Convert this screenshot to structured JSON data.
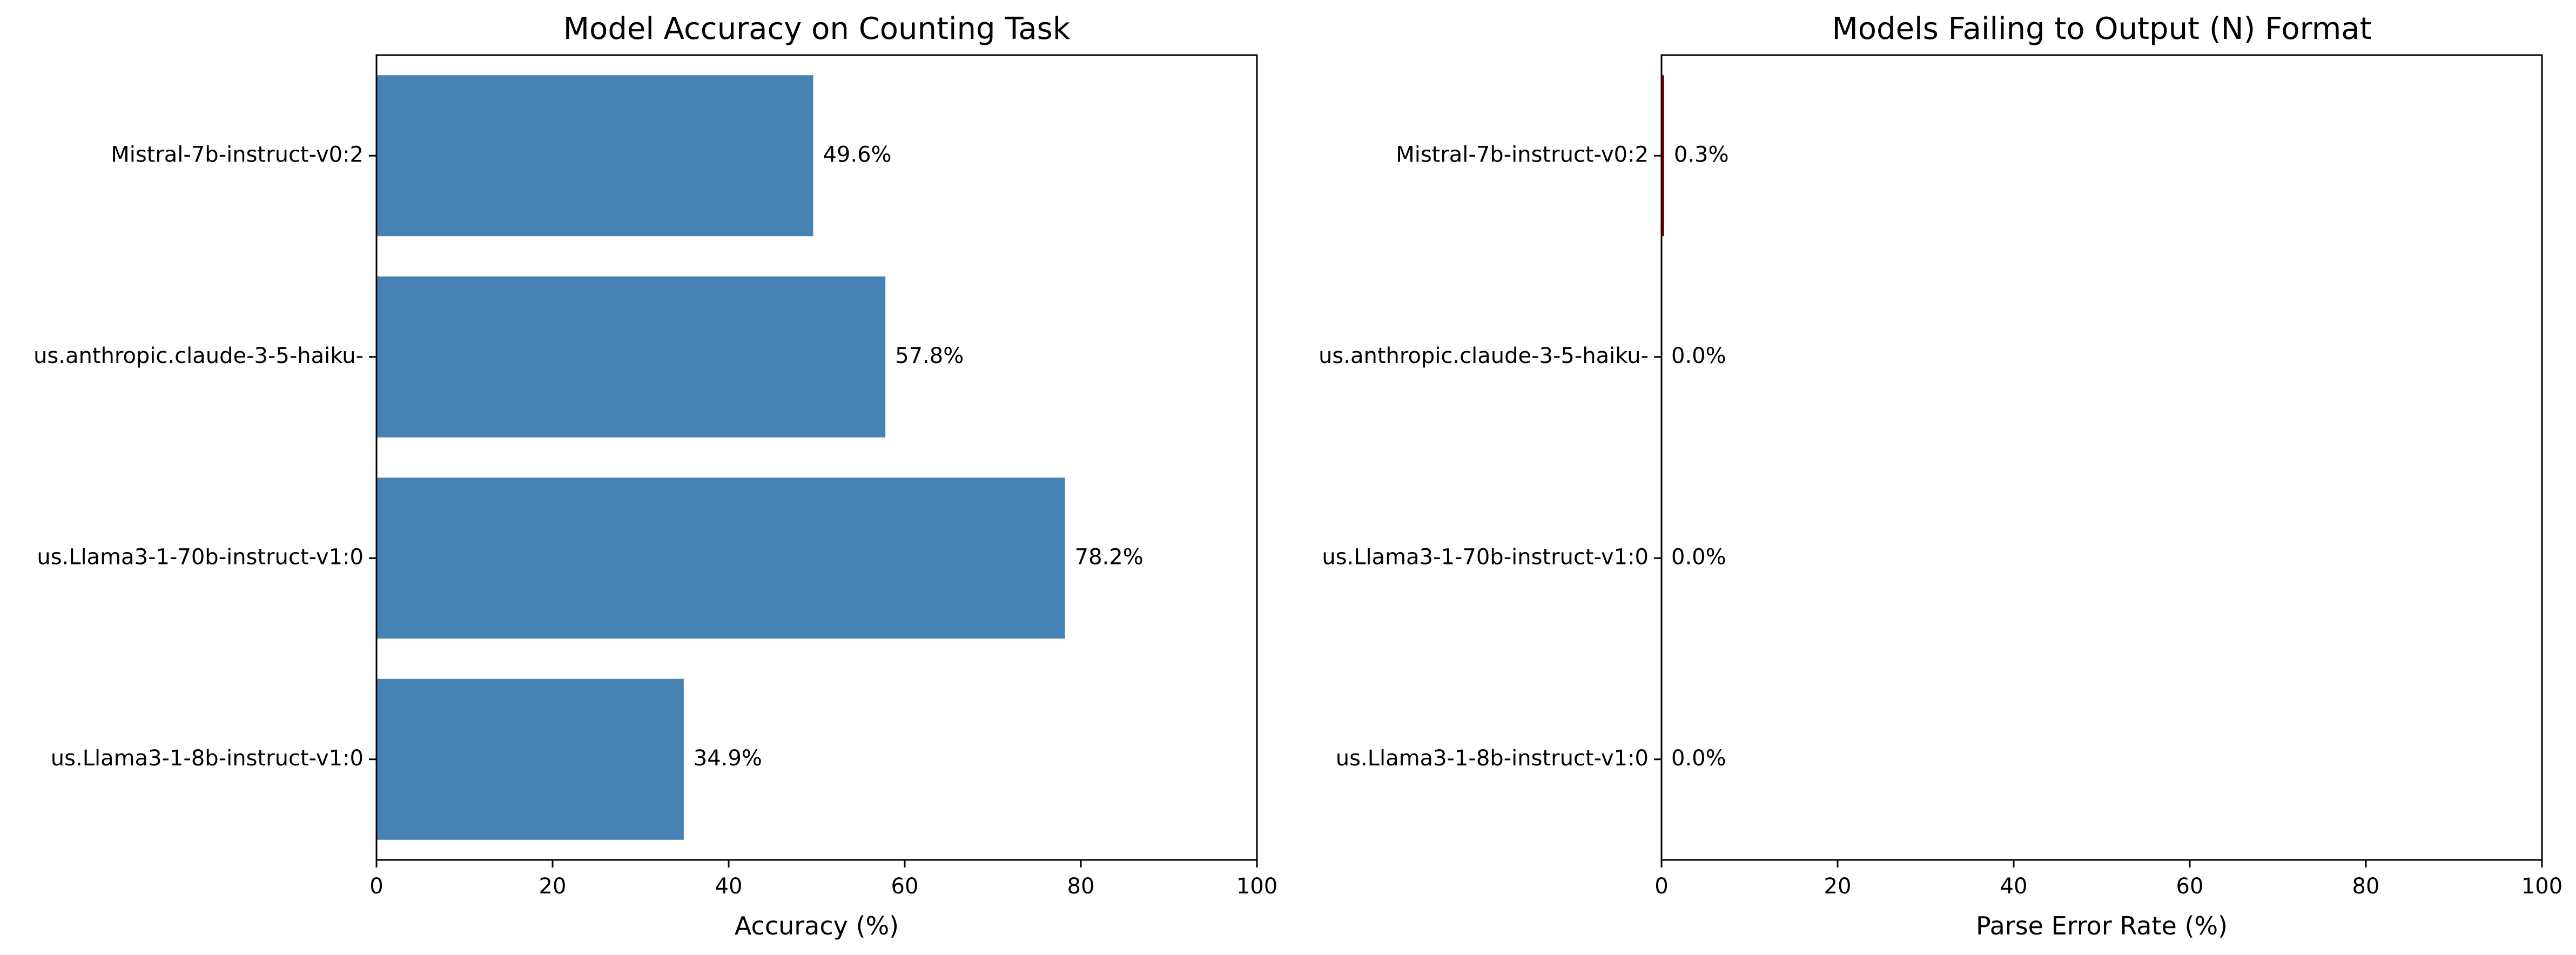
{
  "figure": {
    "background": "#ffffff"
  },
  "chart_data": [
    {
      "type": "bar",
      "orientation": "horizontal",
      "title": "Model Accuracy on Counting Task",
      "xlabel": "Accuracy (%)",
      "ylabel": "",
      "xlim": [
        0,
        100
      ],
      "xticks": [
        0,
        20,
        40,
        60,
        80,
        100
      ],
      "grid": false,
      "legend": "none",
      "bar_color": "#4682b4",
      "categories": [
        "us.Llama3-1-8b-instruct-v1:0",
        "us.Llama3-1-70b-instruct-v1:0",
        "us.anthropic.claude-3-5-haiku-",
        "Mistral-7b-instruct-v0:2"
      ],
      "values": [
        34.9,
        78.2,
        57.8,
        49.6
      ],
      "value_labels": [
        "34.9%",
        "78.2%",
        "57.8%",
        "49.6%"
      ]
    },
    {
      "type": "bar",
      "orientation": "horizontal",
      "title": "Models Failing to Output (N) Format",
      "xlabel": "Parse Error Rate (%)",
      "ylabel": "",
      "xlim": [
        0,
        100
      ],
      "xticks": [
        0,
        20,
        40,
        60,
        80,
        100
      ],
      "grid": false,
      "legend": "none",
      "bar_color": "#8b0000",
      "categories": [
        "us.Llama3-1-8b-instruct-v1:0",
        "us.Llama3-1-70b-instruct-v1:0",
        "us.anthropic.claude-3-5-haiku-",
        "Mistral-7b-instruct-v0:2"
      ],
      "values": [
        0.0,
        0.0,
        0.0,
        0.3
      ],
      "value_labels": [
        "0.0%",
        "0.0%",
        "0.0%",
        "0.3%"
      ]
    }
  ]
}
